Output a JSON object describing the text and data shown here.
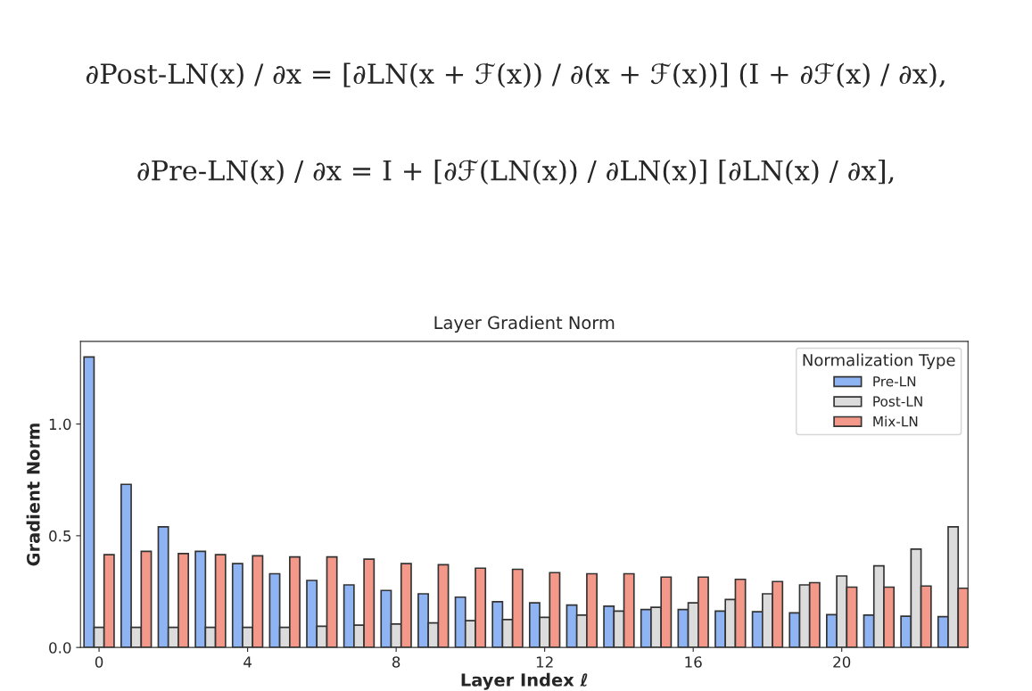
{
  "chart_data": {
    "type": "bar",
    "title": "Layer Gradient Norm",
    "xlabel": "Layer Index ℓ",
    "ylabel": "Gradient Norm",
    "legend_title": "Normalization Type",
    "annotations": [
      "∂Post-LN(x) / ∂x = [∂LN(x + ℱ(x)) / ∂(x + ℱ(x))] (I + ∂ℱ(x) / ∂x),",
      "∂Pre-LN(x) / ∂x = I + [∂ℱ(LN(x)) / ∂LN(x)] [∂LN(x) / ∂x],"
    ],
    "categories": [
      "0",
      null,
      null,
      null,
      "4",
      null,
      null,
      null,
      "8",
      null,
      null,
      null,
      "12",
      null,
      null,
      null,
      "16",
      null,
      null,
      null,
      "20",
      null,
      null,
      null
    ],
    "series": [
      {
        "name": "Pre-LN",
        "color": "#8fb4f4",
        "values": [
          1.3,
          0.73,
          0.54,
          0.43,
          0.375,
          0.33,
          0.3,
          0.28,
          0.255,
          0.24,
          0.225,
          0.205,
          0.2,
          0.19,
          0.185,
          0.17,
          0.17,
          0.163,
          0.16,
          0.155,
          0.147,
          0.145,
          0.14,
          0.138
        ]
      },
      {
        "name": "Post-LN",
        "color": "#dcdcdc",
        "values": [
          0.09,
          0.09,
          0.09,
          0.09,
          0.09,
          0.09,
          0.095,
          0.1,
          0.105,
          0.11,
          0.12,
          0.125,
          0.135,
          0.145,
          0.163,
          0.18,
          0.2,
          0.215,
          0.24,
          0.28,
          0.32,
          0.365,
          0.44,
          0.54
        ]
      },
      {
        "name": "Mix-LN",
        "color": "#f4998a",
        "values": [
          0.415,
          0.43,
          0.42,
          0.415,
          0.41,
          0.405,
          0.405,
          0.395,
          0.375,
          0.37,
          0.355,
          0.35,
          0.335,
          0.33,
          0.33,
          0.315,
          0.315,
          0.305,
          0.295,
          0.29,
          0.27,
          0.27,
          0.275,
          0.265
        ]
      }
    ],
    "ylim": [
      0,
      1.37
    ],
    "yticks": [
      {
        "value": 0,
        "label": "0.0"
      },
      {
        "value": 0.5,
        "label": "0.5"
      },
      {
        "value": 1.0,
        "label": "1.0"
      }
    ],
    "legend": "top right",
    "grid": false
  }
}
